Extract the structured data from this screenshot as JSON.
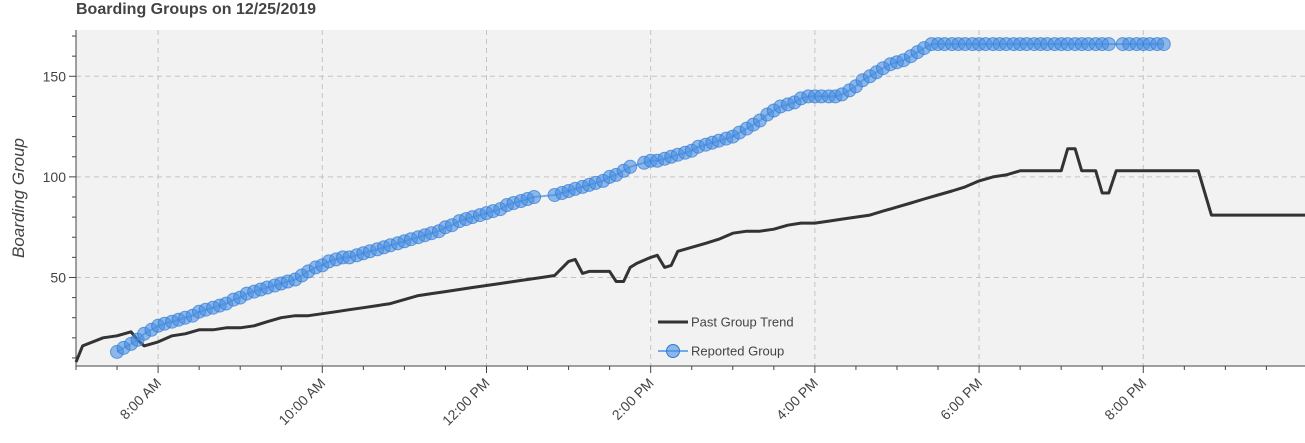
{
  "chart_data": {
    "type": "line",
    "title": "Boarding Groups on 12/25/2019",
    "xlabel": "",
    "ylabel": "Boarding Group",
    "x_unit": "time of day (hours)",
    "xlim": [
      7.0,
      21.97
    ],
    "ylim": [
      6,
      173
    ],
    "x_ticks": [
      {
        "value": 8,
        "label": "8:00 AM"
      },
      {
        "value": 10,
        "label": "10:00 AM"
      },
      {
        "value": 12,
        "label": "12:00 PM"
      },
      {
        "value": 14,
        "label": "2:00 PM"
      },
      {
        "value": 16,
        "label": "4:00 PM"
      },
      {
        "value": 18,
        "label": "6:00 PM"
      },
      {
        "value": 20,
        "label": "8:00 PM"
      }
    ],
    "y_ticks": [
      {
        "value": 50,
        "label": "50"
      },
      {
        "value": 100,
        "label": "100"
      },
      {
        "value": 150,
        "label": "150"
      }
    ],
    "grid": true,
    "legend_position": "bottom-center",
    "series": [
      {
        "name": "Past Group Trend",
        "kind": "line",
        "color": "#333333",
        "x": [
          7.0,
          7.08,
          7.33,
          7.5,
          7.67,
          7.75,
          7.83,
          8.0,
          8.17,
          8.33,
          8.5,
          8.67,
          8.83,
          9.0,
          9.17,
          9.33,
          9.5,
          9.67,
          9.83,
          10.0,
          10.17,
          10.33,
          10.5,
          10.67,
          10.83,
          11.0,
          11.17,
          11.33,
          11.5,
          11.67,
          11.83,
          12.0,
          12.17,
          12.33,
          12.5,
          12.67,
          12.83,
          13.0,
          13.08,
          13.17,
          13.25,
          13.5,
          13.58,
          13.67,
          13.75,
          13.83,
          14.0,
          14.08,
          14.17,
          14.25,
          14.33,
          14.5,
          14.67,
          14.83,
          15.0,
          15.17,
          15.33,
          15.5,
          15.67,
          15.83,
          16.0,
          16.17,
          16.33,
          16.5,
          16.67,
          16.83,
          17.0,
          17.17,
          17.33,
          17.5,
          17.67,
          17.83,
          18.0,
          18.17,
          18.33,
          18.5,
          18.67,
          18.83,
          19.0,
          19.08,
          19.17,
          19.25,
          19.42,
          19.5,
          19.58,
          19.67,
          19.83,
          20.0,
          20.17,
          20.33,
          20.5,
          20.67,
          20.83,
          21.0,
          21.17,
          21.33,
          21.5,
          21.67,
          21.97
        ],
        "y": [
          8,
          16,
          20,
          21,
          23,
          19,
          16,
          18,
          21,
          22,
          24,
          24,
          25,
          25,
          26,
          28,
          30,
          31,
          31,
          32,
          33,
          34,
          35,
          36,
          37,
          39,
          41,
          42,
          43,
          44,
          45,
          46,
          47,
          48,
          49,
          50,
          51,
          58,
          59,
          52,
          53,
          53,
          48,
          48,
          55,
          57,
          60,
          61,
          55,
          56,
          63,
          65,
          67,
          69,
          72,
          73,
          73,
          74,
          76,
          77,
          77,
          78,
          79,
          80,
          81,
          83,
          85,
          87,
          89,
          91,
          93,
          95,
          98,
          100,
          101,
          103,
          103,
          103,
          103,
          114,
          114,
          103,
          103,
          92,
          92,
          103,
          103,
          103,
          103,
          103,
          103,
          103,
          81,
          81,
          81,
          81,
          81,
          81,
          81
        ]
      },
      {
        "name": "Reported Group",
        "kind": "line+markers",
        "color": "#4a90e2",
        "x": [
          7.5,
          7.58,
          7.67,
          7.75,
          7.83,
          7.92,
          8.0,
          8.08,
          8.17,
          8.25,
          8.33,
          8.42,
          8.5,
          8.58,
          8.67,
          8.75,
          8.83,
          8.92,
          9.0,
          9.08,
          9.17,
          9.25,
          9.33,
          9.42,
          9.5,
          9.58,
          9.67,
          9.75,
          9.83,
          9.92,
          10.0,
          10.08,
          10.17,
          10.25,
          10.33,
          10.42,
          10.5,
          10.58,
          10.67,
          10.75,
          10.83,
          10.92,
          11.0,
          11.08,
          11.17,
          11.25,
          11.33,
          11.42,
          11.5,
          11.58,
          11.67,
          11.75,
          11.83,
          11.92,
          12.0,
          12.08,
          12.17,
          12.25,
          12.33,
          12.42,
          12.5,
          12.58,
          12.83,
          12.92,
          13.0,
          13.08,
          13.17,
          13.25,
          13.33,
          13.42,
          13.5,
          13.58,
          13.67,
          13.75,
          13.92,
          14.0,
          14.08,
          14.17,
          14.25,
          14.33,
          14.42,
          14.5,
          14.58,
          14.67,
          14.75,
          14.83,
          14.92,
          15.0,
          15.08,
          15.17,
          15.25,
          15.33,
          15.42,
          15.5,
          15.58,
          15.67,
          15.75,
          15.83,
          15.92,
          16.0,
          16.08,
          16.17,
          16.25,
          16.33,
          16.42,
          16.5,
          16.58,
          16.67,
          16.75,
          16.83,
          16.92,
          17.0,
          17.08,
          17.17,
          17.25,
          17.33,
          17.42,
          17.5,
          17.58,
          17.67,
          17.75,
          17.83,
          17.92,
          18.0,
          18.08,
          18.17,
          18.25,
          18.33,
          18.42,
          18.5,
          18.58,
          18.67,
          18.75,
          18.83,
          18.92,
          19.0,
          19.08,
          19.17,
          19.25,
          19.33,
          19.42,
          19.5,
          19.58,
          19.75,
          19.83,
          19.92,
          20.0,
          20.08,
          20.17,
          20.25
        ],
        "y": [
          13,
          15,
          17,
          19,
          22,
          24,
          26,
          27,
          28,
          29,
          30,
          31,
          33,
          34,
          35,
          36,
          37,
          39,
          40,
          42,
          43,
          44,
          45,
          46,
          47,
          48,
          49,
          51,
          53,
          55,
          56,
          58,
          59,
          60,
          60,
          61,
          62,
          63,
          64,
          65,
          66,
          67,
          68,
          69,
          70,
          71,
          72,
          73,
          75,
          76,
          78,
          79,
          80,
          81,
          82,
          83,
          84,
          86,
          87,
          88,
          89,
          90,
          91,
          92,
          93,
          94,
          95,
          96,
          97,
          98,
          100,
          101,
          103,
          105,
          107,
          108,
          108,
          109,
          110,
          111,
          112,
          113,
          115,
          116,
          117,
          118,
          119,
          120,
          122,
          124,
          126,
          128,
          131,
          133,
          135,
          136,
          137,
          139,
          140,
          140,
          140,
          140,
          140,
          141,
          143,
          145,
          148,
          150,
          152,
          154,
          156,
          157,
          158,
          160,
          162,
          164,
          166,
          166,
          166,
          166,
          166,
          166,
          166,
          166,
          166,
          166,
          166,
          166,
          166,
          166,
          166,
          166,
          166,
          166,
          166,
          166,
          166,
          166,
          166,
          166,
          166,
          166,
          166,
          166,
          166,
          166,
          166,
          166,
          166,
          166
        ]
      }
    ]
  }
}
